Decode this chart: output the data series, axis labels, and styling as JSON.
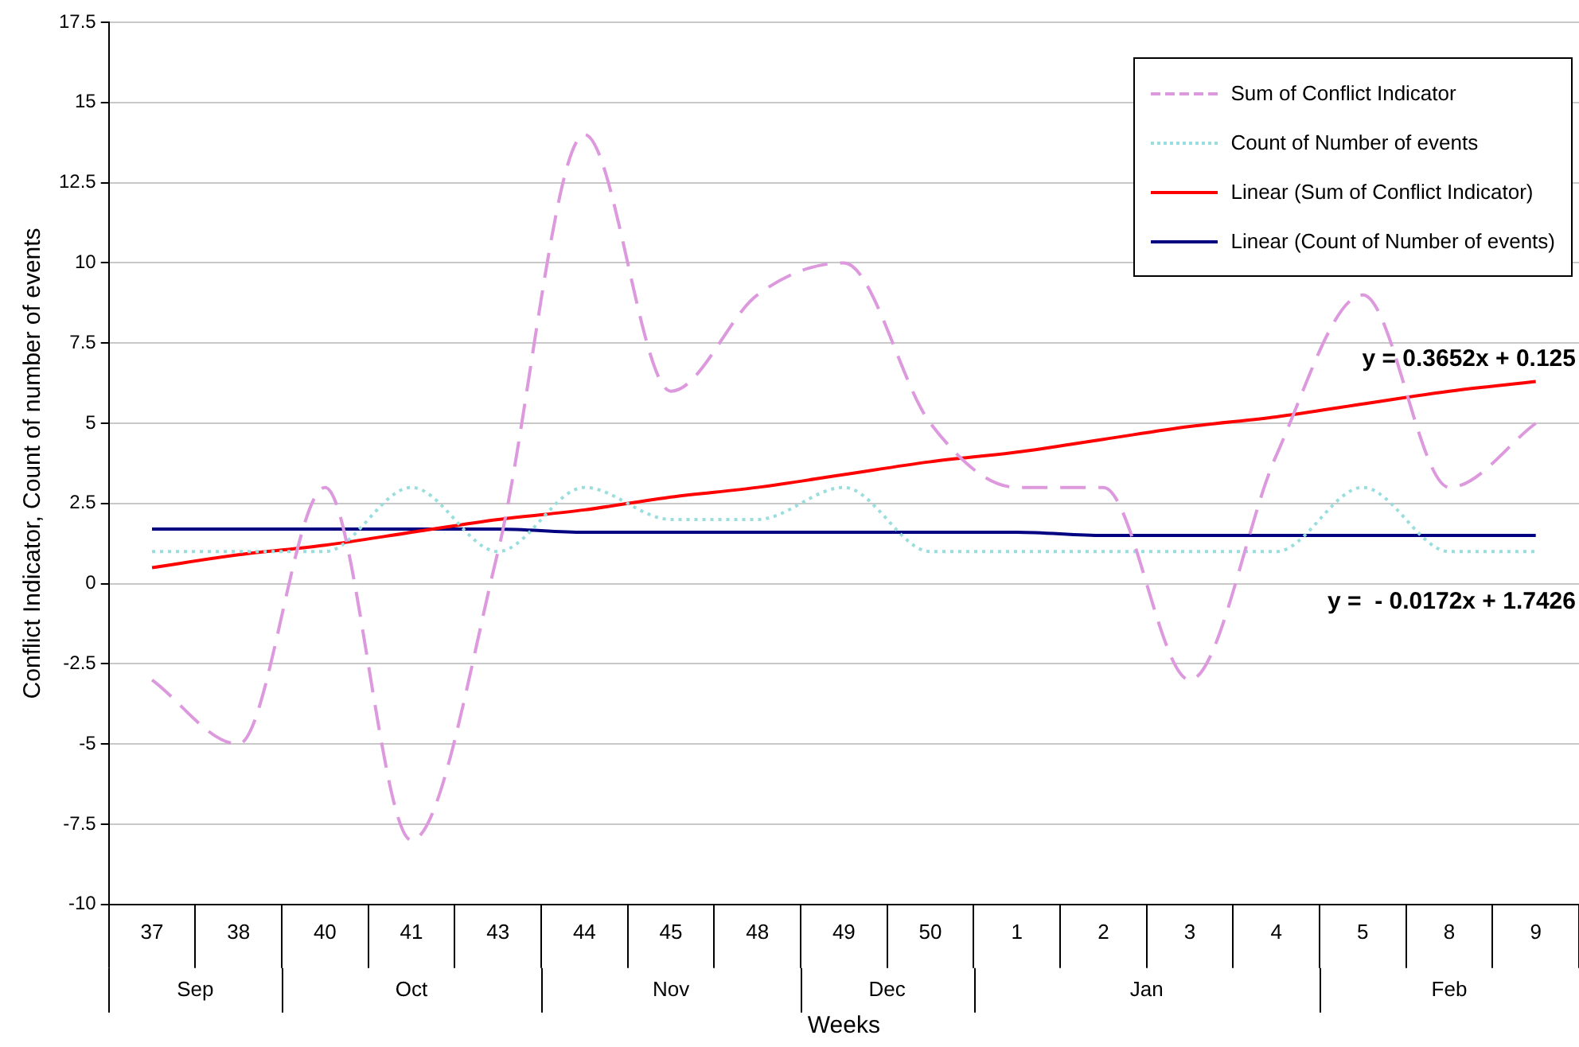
{
  "chart_data": {
    "type": "line",
    "xlabel": "Weeks",
    "ylabel": "Conflict Indicator, Count of number of events",
    "categories": [
      "37",
      "38",
      "40",
      "41",
      "43",
      "44",
      "45",
      "48",
      "49",
      "50",
      "1",
      "2",
      "3",
      "4",
      "5",
      "8",
      "9"
    ],
    "series": [
      {
        "name": "Sum of Conflict Indicator",
        "color": "#dd99dd",
        "line_style": "dashed",
        "values": [
          -3,
          -5,
          3,
          -8,
          1,
          14,
          6,
          9,
          10,
          5,
          3,
          3,
          -3,
          4,
          9,
          3,
          5
        ]
      },
      {
        "name": "Count of Number of events",
        "color": "#99dddd",
        "line_style": "dotted",
        "values": [
          1,
          1,
          1,
          3,
          1,
          3,
          2,
          2,
          3,
          1,
          1,
          1,
          1,
          1,
          3,
          1,
          1
        ]
      },
      {
        "name": "Linear (Sum of Conflict Indicator)",
        "color": "#ff0000",
        "line_style": "solid",
        "values": [
          0.5,
          0.9,
          1.2,
          1.6,
          2.0,
          2.3,
          2.7,
          3.0,
          3.4,
          3.8,
          4.1,
          4.5,
          4.9,
          5.2,
          5.6,
          6.0,
          6.3
        ]
      },
      {
        "name": "Linear (Count of Number of events)",
        "color": "#000080",
        "line_style": "solid",
        "values": [
          1.7,
          1.7,
          1.7,
          1.7,
          1.7,
          1.6,
          1.6,
          1.6,
          1.6,
          1.6,
          1.6,
          1.5,
          1.5,
          1.5,
          1.5,
          1.5,
          1.5
        ]
      }
    ],
    "ylim": [
      -10,
      17.5
    ],
    "yticks": [
      -10,
      -7.5,
      -5,
      -2.5,
      0,
      2.5,
      5,
      7.5,
      10,
      12.5,
      15,
      17.5
    ],
    "grid": "y",
    "legend": "top right",
    "marker": "none",
    "annotations": [
      "y = 0.3652x + 0.125",
      "y =  - 0.0172x + 1.7426",
      "Sep",
      "Oct",
      "Nov",
      "Dec",
      "Jan",
      "Feb"
    ]
  }
}
